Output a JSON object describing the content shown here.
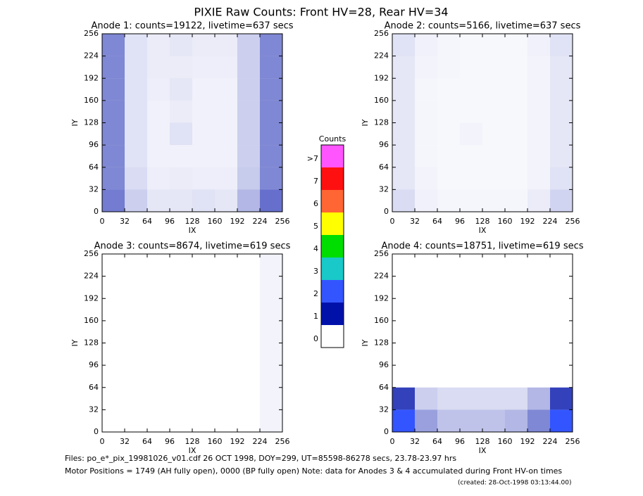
{
  "title": "PIXIE Raw Counts:  Front HV=28, Rear HV=34",
  "colorbar": {
    "title": "Counts",
    "labels": [
      ">7",
      7,
      6,
      5,
      4,
      3,
      2,
      1,
      0
    ],
    "colors": [
      "#ff55ff",
      "#ff1010",
      "#ff6633",
      "#ffff00",
      "#00dd00",
      "#19c8c8",
      "#3355ff",
      "#0011aa",
      "#ffffff"
    ]
  },
  "footer": [
    "Files: po_e*_pix_19981026_v01.cdf   26 OCT 1998, DOY=299, UT=85598-86278 secs, 23.78-23.97 hrs",
    "Motor Positions = 1749 (AH fully open), 0000 (BP fully open)    Note: data for Anodes 3 & 4 accumulated during Front HV-on times",
    "(created: 28-Oct-1998 03:13:44.00)"
  ],
  "chart_data": [
    {
      "type": "heatmap",
      "title": "Anode 1: counts=19122, livetime=637 secs",
      "xlabel": "IX",
      "ylabel": "IY",
      "xlim": [
        0,
        256
      ],
      "ylim": [
        0,
        256
      ],
      "xticks": [
        0,
        32,
        64,
        96,
        128,
        160,
        192,
        224,
        256
      ],
      "yticks": [
        0,
        32,
        64,
        96,
        128,
        160,
        192,
        224,
        256
      ],
      "bins": [
        0,
        32,
        64,
        96,
        128,
        160,
        192,
        224,
        256
      ],
      "values": [
        [
          0.55,
          0.2,
          0.1,
          0.1,
          0.12,
          0.1,
          0.3,
          0.6
        ],
        [
          0.5,
          0.15,
          0.07,
          0.08,
          0.07,
          0.07,
          0.22,
          0.5
        ],
        [
          0.5,
          0.12,
          0.06,
          0.06,
          0.06,
          0.06,
          0.2,
          0.5
        ],
        [
          0.5,
          0.12,
          0.06,
          0.12,
          0.06,
          0.06,
          0.2,
          0.5
        ],
        [
          0.5,
          0.12,
          0.06,
          0.08,
          0.06,
          0.06,
          0.2,
          0.5
        ],
        [
          0.5,
          0.12,
          0.07,
          0.1,
          0.06,
          0.06,
          0.2,
          0.5
        ],
        [
          0.5,
          0.12,
          0.08,
          0.08,
          0.07,
          0.07,
          0.2,
          0.5
        ],
        [
          0.5,
          0.12,
          0.08,
          0.1,
          0.08,
          0.08,
          0.2,
          0.5
        ]
      ]
    },
    {
      "type": "heatmap",
      "title": "Anode 2: counts=5166, livetime=637 secs",
      "xlabel": "IX",
      "ylabel": "IY",
      "xlim": [
        0,
        256
      ],
      "ylim": [
        0,
        256
      ],
      "xticks": [
        0,
        32,
        64,
        96,
        128,
        160,
        192,
        224,
        256
      ],
      "yticks": [
        0,
        32,
        64,
        96,
        128,
        160,
        192,
        224,
        256
      ],
      "bins": [
        0,
        32,
        64,
        96,
        128,
        160,
        192,
        224,
        256
      ],
      "values": [
        [
          0.15,
          0.06,
          0.04,
          0.04,
          0.04,
          0.04,
          0.08,
          0.18
        ],
        [
          0.1,
          0.05,
          0.03,
          0.03,
          0.03,
          0.03,
          0.05,
          0.12
        ],
        [
          0.1,
          0.04,
          0.03,
          0.03,
          0.03,
          0.03,
          0.05,
          0.1
        ],
        [
          0.1,
          0.04,
          0.03,
          0.05,
          0.03,
          0.03,
          0.05,
          0.1
        ],
        [
          0.1,
          0.04,
          0.03,
          0.03,
          0.03,
          0.03,
          0.05,
          0.1
        ],
        [
          0.1,
          0.04,
          0.03,
          0.03,
          0.03,
          0.03,
          0.05,
          0.1
        ],
        [
          0.1,
          0.05,
          0.04,
          0.03,
          0.03,
          0.03,
          0.05,
          0.1
        ],
        [
          0.12,
          0.06,
          0.04,
          0.03,
          0.03,
          0.03,
          0.06,
          0.12
        ]
      ]
    },
    {
      "type": "heatmap",
      "title": "Anode 3: counts=8674, livetime=619 secs",
      "xlabel": "IX",
      "ylabel": "IY",
      "xlim": [
        0,
        256
      ],
      "ylim": [
        0,
        256
      ],
      "xticks": [
        0,
        32,
        64,
        96,
        128,
        160,
        192,
        224,
        256
      ],
      "yticks": [
        0,
        32,
        64,
        96,
        128,
        160,
        192,
        224,
        256
      ],
      "bins": [
        0,
        32,
        64,
        96,
        128,
        160,
        192,
        224,
        256
      ],
      "values": [
        [
          0,
          0,
          0,
          0,
          0,
          0,
          0,
          0.05
        ],
        [
          0,
          0,
          0,
          0,
          0,
          0,
          0,
          0.05
        ],
        [
          0,
          0,
          0,
          0,
          0,
          0,
          0,
          0.05
        ],
        [
          0,
          0,
          0,
          0,
          0,
          0,
          0,
          0.05
        ],
        [
          0,
          0,
          0,
          0,
          0,
          0,
          0,
          0.05
        ],
        [
          0,
          0,
          0,
          0,
          0,
          0,
          0,
          0.05
        ],
        [
          0,
          0,
          0,
          0,
          0,
          0,
          0,
          0.05
        ],
        [
          0,
          0,
          0,
          0,
          0,
          0,
          0,
          0.05
        ]
      ]
    },
    {
      "type": "heatmap",
      "title": "Anode 4: counts=18751, livetime=619 secs",
      "xlabel": "IX",
      "ylabel": "IY",
      "xlim": [
        0,
        256
      ],
      "ylim": [
        0,
        256
      ],
      "xticks": [
        0,
        32,
        64,
        96,
        128,
        160,
        192,
        224,
        256
      ],
      "yticks": [
        0,
        32,
        64,
        96,
        128,
        160,
        192,
        224,
        256
      ],
      "bins": [
        0,
        32,
        64,
        96,
        128,
        160,
        192,
        224,
        256
      ],
      "values": [
        [
          1.5,
          0.4,
          0.25,
          0.25,
          0.25,
          0.3,
          0.5,
          1.5
        ],
        [
          0.8,
          0.2,
          0.15,
          0.15,
          0.15,
          0.15,
          0.3,
          0.8
        ],
        [
          0,
          0,
          0,
          0,
          0,
          0,
          0,
          0
        ],
        [
          0,
          0,
          0,
          0,
          0,
          0,
          0,
          0
        ],
        [
          0,
          0,
          0,
          0,
          0,
          0,
          0,
          0
        ],
        [
          0,
          0,
          0,
          0,
          0,
          0,
          0,
          0
        ],
        [
          0,
          0,
          0,
          0,
          0,
          0,
          0,
          0
        ],
        [
          0,
          0,
          0,
          0,
          0,
          0,
          0,
          0
        ]
      ]
    }
  ]
}
